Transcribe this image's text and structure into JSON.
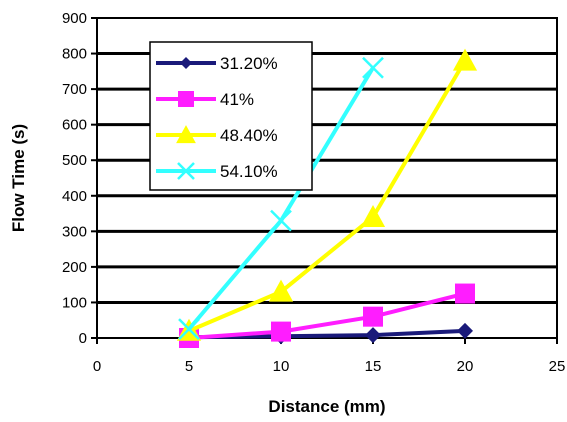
{
  "chart_data": {
    "type": "line",
    "title": "",
    "xlabel": "Distance (mm)",
    "ylabel": "Flow Time (s)",
    "xlim": [
      0,
      25
    ],
    "ylim": [
      0,
      900
    ],
    "x_ticks": [
      "0",
      "5",
      "10",
      "15",
      "20",
      "25"
    ],
    "y_ticks": [
      "0",
      "100",
      "200",
      "300",
      "400",
      "500",
      "600",
      "700",
      "800",
      "900"
    ],
    "grid": "horizontal",
    "legend_position": "top-left inside plot",
    "series": [
      {
        "name": "31.20%",
        "color": "#1a1a7a",
        "marker": "diamond",
        "x": [
          5,
          10,
          15,
          20
        ],
        "y": [
          2,
          5,
          8,
          20
        ]
      },
      {
        "name": "41%",
        "color": "#ff1dff",
        "marker": "square",
        "x": [
          5,
          10,
          15,
          20
        ],
        "y": [
          0,
          18,
          60,
          125
        ]
      },
      {
        "name": "48.40%",
        "color": "#ffff00",
        "marker": "triangle",
        "x": [
          5,
          10,
          15,
          20
        ],
        "y": [
          20,
          130,
          340,
          780
        ]
      },
      {
        "name": "54.10%",
        "color": "#33ffff",
        "marker": "x",
        "x": [
          5,
          10,
          15
        ],
        "y": [
          25,
          330,
          760
        ]
      }
    ]
  }
}
